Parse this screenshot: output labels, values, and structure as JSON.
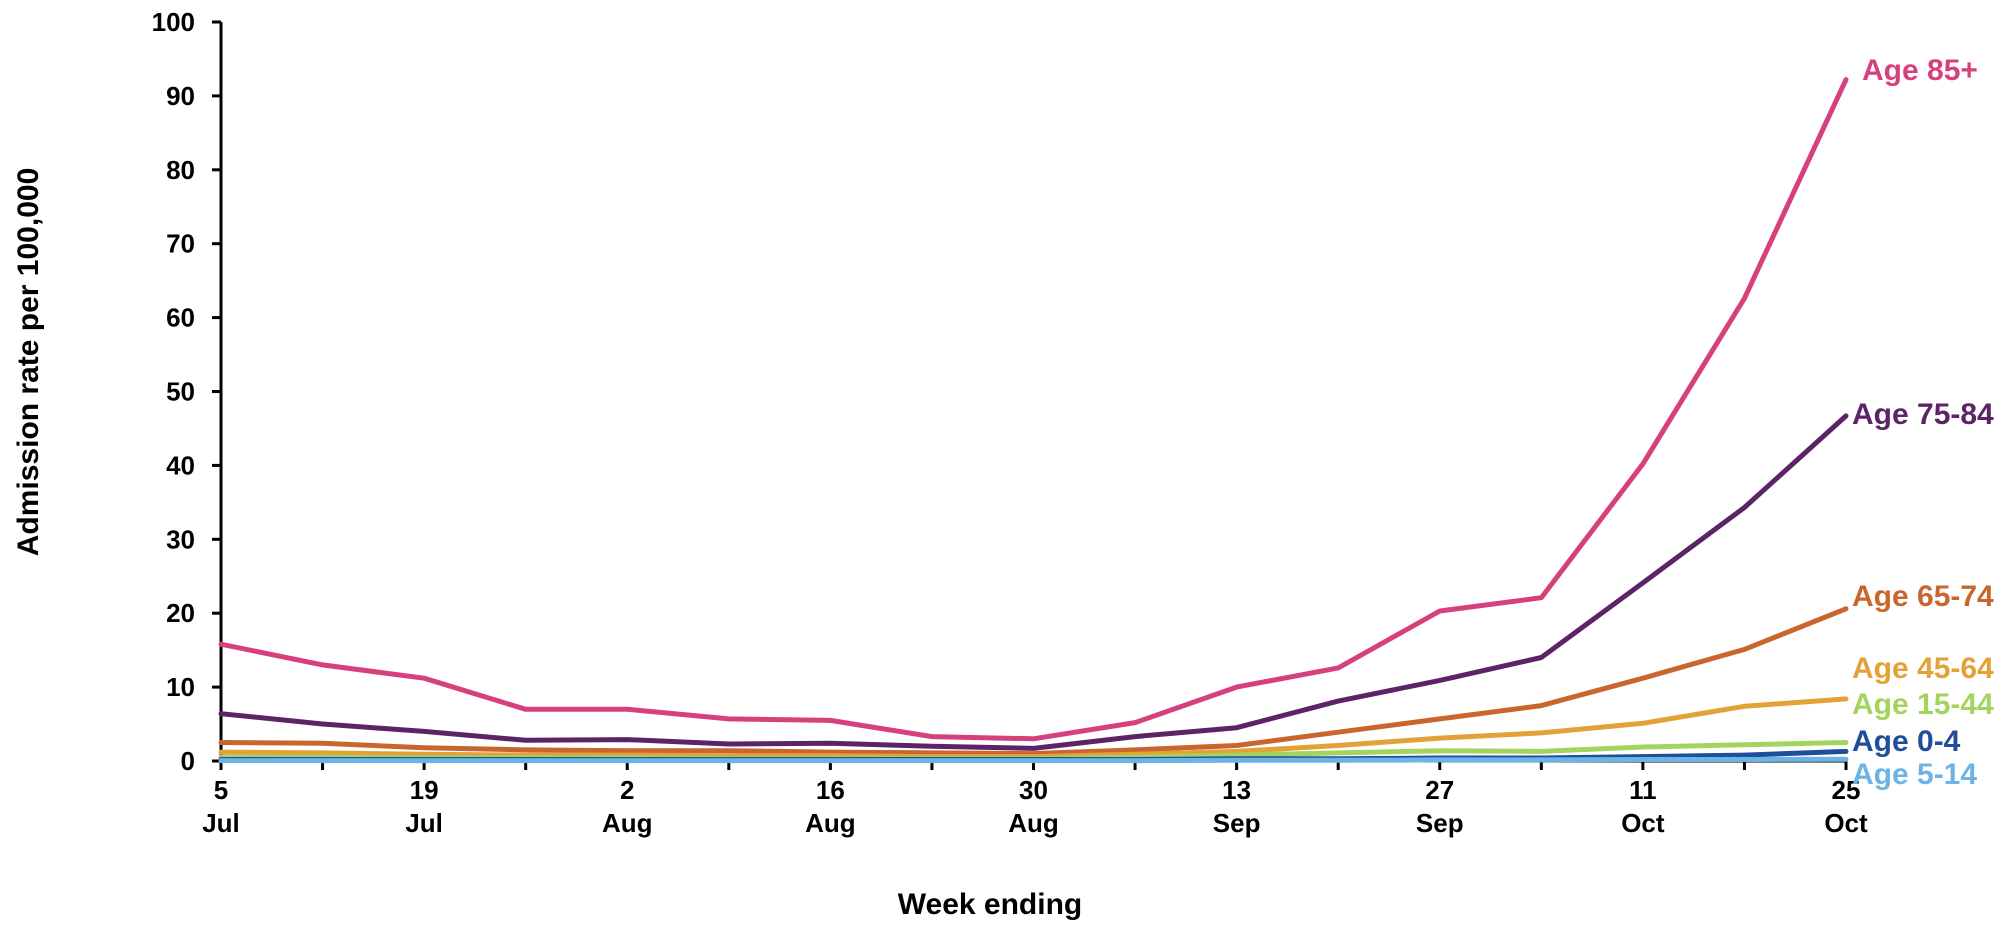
{
  "chart_data": {
    "type": "line",
    "xlabel": "Week ending",
    "ylabel": "Admission rate per 100,000",
    "ylim": [
      0,
      100
    ],
    "yticks": [
      0,
      10,
      20,
      30,
      40,
      50,
      60,
      70,
      80,
      90,
      100
    ],
    "x_ticks": [
      {
        "index": 0,
        "day": "5",
        "month": "Jul"
      },
      {
        "index": 2,
        "day": "19",
        "month": "Jul"
      },
      {
        "index": 4,
        "day": "2",
        "month": "Aug"
      },
      {
        "index": 6,
        "day": "16",
        "month": "Aug"
      },
      {
        "index": 8,
        "day": "30",
        "month": "Aug"
      },
      {
        "index": 10,
        "day": "13",
        "month": "Sep"
      },
      {
        "index": 12,
        "day": "27",
        "month": "Sep"
      },
      {
        "index": 14,
        "day": "11",
        "month": "Oct"
      },
      {
        "index": 16,
        "day": "25",
        "month": "Oct"
      }
    ],
    "x": [
      "5 Jul",
      "12 Jul",
      "19 Jul",
      "26 Jul",
      "2 Aug",
      "9 Aug",
      "16 Aug",
      "23 Aug",
      "30 Aug",
      "6 Sep",
      "13 Sep",
      "20 Sep",
      "27 Sep",
      "4 Oct",
      "11 Oct",
      "18 Oct",
      "25 Oct"
    ],
    "series": [
      {
        "name": "Age 85+",
        "color": "#d6407c",
        "values": [
          15.8,
          13.0,
          11.2,
          7.0,
          7.0,
          5.7,
          5.5,
          3.3,
          3.0,
          5.2,
          10.0,
          12.6,
          20.3,
          22.1,
          40.2,
          62.6,
          92.2
        ]
      },
      {
        "name": "Age 75-84",
        "color": "#5c2466",
        "values": [
          6.4,
          5.0,
          4.0,
          2.8,
          2.9,
          2.3,
          2.4,
          2.0,
          1.7,
          3.3,
          4.5,
          8.1,
          10.9,
          14.0,
          24.1,
          34.3,
          46.7
        ]
      },
      {
        "name": "Age 65-74",
        "color": "#c8662e",
        "values": [
          2.5,
          2.4,
          1.8,
          1.5,
          1.4,
          1.4,
          1.2,
          1.1,
          1.0,
          1.5,
          2.1,
          3.9,
          5.7,
          7.5,
          11.2,
          15.1,
          20.6
        ]
      },
      {
        "name": "Age 45-64",
        "color": "#e3a238",
        "values": [
          1.2,
          1.1,
          0.9,
          0.8,
          0.8,
          0.7,
          0.7,
          0.6,
          0.6,
          0.9,
          1.3,
          2.1,
          3.1,
          3.8,
          5.1,
          7.4,
          8.4
        ]
      },
      {
        "name": "Age 15-44",
        "color": "#a2d45e",
        "values": [
          0.5,
          0.5,
          0.4,
          0.4,
          0.4,
          0.3,
          0.3,
          0.3,
          0.3,
          0.5,
          0.8,
          1.1,
          1.4,
          1.3,
          1.9,
          2.2,
          2.5
        ]
      },
      {
        "name": "Age 0-4",
        "color": "#1f4e9a",
        "values": [
          0.2,
          0.2,
          0.2,
          0.2,
          0.2,
          0.2,
          0.2,
          0.2,
          0.2,
          0.2,
          0.3,
          0.3,
          0.4,
          0.4,
          0.6,
          0.8,
          1.3
        ]
      },
      {
        "name": "Age 5-14",
        "color": "#6cb4e4",
        "values": [
          0.05,
          0.05,
          0.05,
          0.05,
          0.05,
          0.05,
          0.05,
          0.05,
          0.05,
          0.05,
          0.1,
          0.1,
          0.15,
          0.15,
          0.2,
          0.2,
          0.25
        ]
      }
    ]
  }
}
